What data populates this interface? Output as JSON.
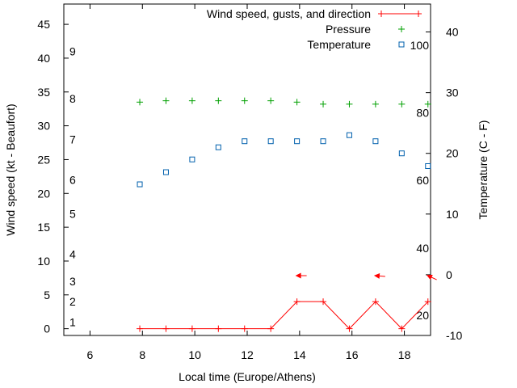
{
  "chart_data": {
    "type": "line",
    "title": "",
    "xlabel": "Local time (Europe/Athens)",
    "ylabel": "Wind speed (kt - Beaufort)",
    "y2label": "Temperature (C - F)",
    "xlim": [
      5,
      19
    ],
    "ylim": [
      -1,
      48
    ],
    "y2lim": [
      -10,
      44.6
    ],
    "x_ticks": [
      6,
      8,
      10,
      12,
      14,
      16,
      18
    ],
    "y_ticks": [
      0,
      5,
      10,
      15,
      20,
      25,
      30,
      35,
      40,
      45
    ],
    "y2_ticks": [
      -10,
      0,
      10,
      20,
      30,
      40
    ],
    "beaufort_labels": [
      {
        "label": "1",
        "kt": 1
      },
      {
        "label": "2",
        "kt": 4
      },
      {
        "label": "3",
        "kt": 7
      },
      {
        "label": "4",
        "kt": 11
      },
      {
        "label": "5",
        "kt": 17
      },
      {
        "label": "6",
        "kt": 22
      },
      {
        "label": "7",
        "kt": 28
      },
      {
        "label": "8",
        "kt": 34
      },
      {
        "label": "9",
        "kt": 41
      }
    ],
    "fahrenheit_labels": [
      {
        "label": "20",
        "c": -6.7
      },
      {
        "label": "40",
        "c": 4.4
      },
      {
        "label": "60",
        "c": 15.6
      },
      {
        "label": "80",
        "c": 26.7
      },
      {
        "label": "100",
        "c": 37.8
      }
    ],
    "legend_position": "top-right",
    "series": [
      {
        "name": "Wind speed, gusts, and direction",
        "color": "#ff0000",
        "marker": "plus",
        "axis": "y",
        "x": [
          7.9,
          8.9,
          9.9,
          10.9,
          11.9,
          12.9,
          13.9,
          14.9,
          15.9,
          16.9,
          17.9,
          18.9
        ],
        "values": [
          0,
          0,
          0,
          0,
          0,
          0,
          4,
          4,
          0,
          4,
          0,
          4
        ]
      },
      {
        "name": "Pressure",
        "color": "#00a000",
        "marker": "plus",
        "axis": "y",
        "x": [
          7.9,
          8.9,
          9.9,
          10.9,
          11.9,
          12.9,
          13.9,
          14.9,
          15.9,
          16.9,
          17.9,
          18.9
        ],
        "values": [
          33.5,
          33.7,
          33.7,
          33.7,
          33.7,
          33.7,
          33.5,
          33.2,
          33.2,
          33.2,
          33.2,
          33.2
        ]
      },
      {
        "name": "Temperature",
        "color": "#0060ad",
        "marker": "square",
        "axis": "y2",
        "x": [
          7.9,
          8.9,
          9.9,
          10.9,
          11.9,
          12.9,
          13.9,
          14.9,
          15.9,
          16.9,
          17.9,
          18.9
        ],
        "values": [
          14.9,
          16.9,
          19.0,
          21.0,
          22.0,
          22.0,
          22.0,
          22.0,
          23.0,
          22.0,
          20.0,
          17.9
        ]
      }
    ],
    "wind_direction_arrows": [
      {
        "x": 13.9,
        "from_deg": 315
      },
      {
        "x": 16.9,
        "from_deg": 320
      },
      {
        "x": 18.9,
        "from_deg": 340
      }
    ]
  }
}
